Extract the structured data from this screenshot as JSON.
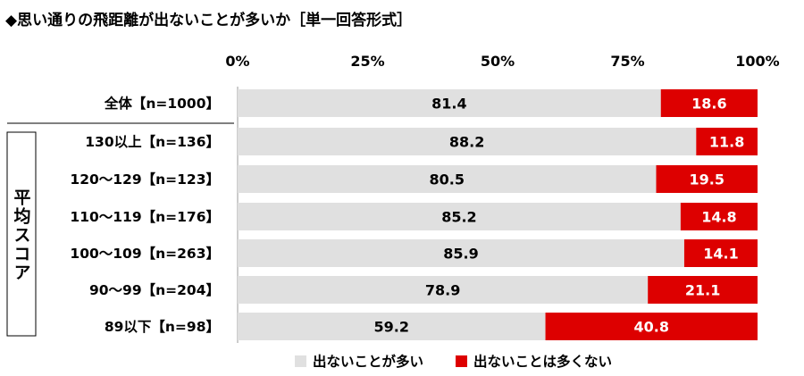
{
  "chart_data": {
    "type": "bar",
    "orientation": "horizontal",
    "stacked": true,
    "title": "◆思い通りの飛距離が出ないことが多いか［単一回答形式］",
    "categories": [
      "全体【n=1000】",
      "130以上【n=136】",
      "120〜129【n=123】",
      "110〜119【n=176】",
      "100〜109【n=263】",
      "90〜99【n=204】",
      "89以下【n=98】"
    ],
    "group_label": "平均スコア",
    "xlim": [
      0,
      100
    ],
    "x_ticks": [
      "0%",
      "25%",
      "50%",
      "75%",
      "100%"
    ],
    "grid": false,
    "legend_position": "bottom",
    "series": [
      {
        "name": "出ないことが多い",
        "color": "#e0e0e0",
        "values": [
          81.4,
          88.2,
          80.5,
          85.2,
          85.9,
          78.9,
          59.2
        ]
      },
      {
        "name": "出ないことは多くない",
        "color": "#dd0000",
        "values": [
          18.6,
          11.8,
          19.5,
          14.8,
          14.1,
          21.1,
          40.8
        ]
      }
    ]
  }
}
